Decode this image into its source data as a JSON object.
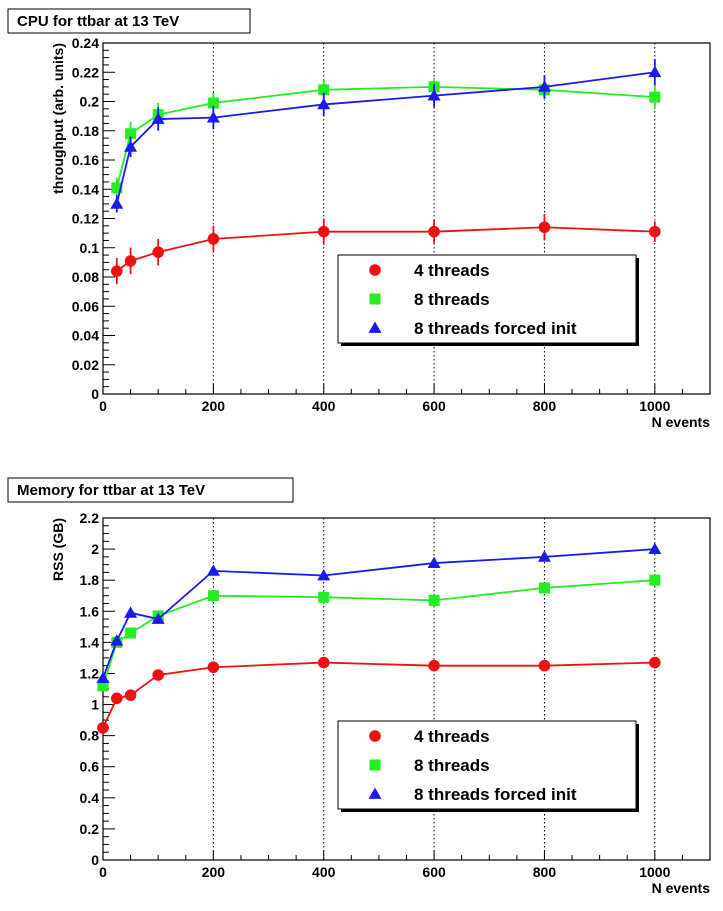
{
  "chart_data": [
    {
      "type": "line",
      "title": "CPU for ttbar at 13 TeV",
      "xlabel": "N events",
      "ylabel": "throughput (arb. units)",
      "xlim": [
        0,
        1100
      ],
      "ylim": [
        0,
        0.24
      ],
      "x_ticks": [
        0,
        200,
        400,
        600,
        800,
        1000
      ],
      "y_ticks": [
        0,
        0.02,
        0.04,
        0.06,
        0.08,
        0.1,
        0.12,
        0.14,
        0.16,
        0.18,
        0.2,
        0.22,
        0.24
      ],
      "x_tick_labels": [
        "0",
        "200",
        "400",
        "600",
        "800",
        "1000"
      ],
      "y_tick_labels": [
        "0",
        "0.02",
        "0.04",
        "0.06",
        "0.08",
        "0.1",
        "0.12",
        "0.14",
        "0.16",
        "0.18",
        "0.2",
        "0.22",
        "0.24"
      ],
      "grid": true,
      "legend_position": "middle-right",
      "series": [
        {
          "name": "4 threads",
          "color": "#ee1111",
          "marker": "circle",
          "x": [
            25,
            50,
            100,
            200,
            400,
            600,
            800,
            1000
          ],
          "y": [
            0.084,
            0.091,
            0.097,
            0.106,
            0.111,
            0.111,
            0.114,
            0.111
          ],
          "err": [
            0.009,
            0.009,
            0.009,
            0.009,
            0.009,
            0.008,
            0.009,
            0.007
          ]
        },
        {
          "name": "8 threads",
          "color": "#22ee22",
          "marker": "square",
          "x": [
            25,
            50,
            100,
            200,
            400,
            600,
            800,
            1000
          ],
          "y": [
            0.141,
            0.178,
            0.191,
            0.199,
            0.208,
            0.21,
            0.208,
            0.203
          ],
          "err": [
            0.007,
            0.008,
            0.008,
            0.007,
            0.007,
            0.006,
            0.007,
            0.008
          ]
        },
        {
          "name": "8 threads forced init",
          "color": "#1a1aee",
          "marker": "triangle",
          "x": [
            25,
            50,
            100,
            200,
            400,
            600,
            800,
            1000
          ],
          "y": [
            0.13,
            0.169,
            0.188,
            0.189,
            0.198,
            0.204,
            0.21,
            0.22
          ],
          "err": [
            0.006,
            0.007,
            0.008,
            0.008,
            0.008,
            0.008,
            0.008,
            0.009
          ]
        }
      ]
    },
    {
      "type": "line",
      "title": "Memory for ttbar at 13 TeV",
      "xlabel": "N events",
      "ylabel": "RSS (GB)",
      "xlim": [
        0,
        1100
      ],
      "ylim": [
        0,
        2.2
      ],
      "x_ticks": [
        0,
        200,
        400,
        600,
        800,
        1000
      ],
      "y_ticks": [
        0,
        0.2,
        0.4,
        0.6,
        0.8,
        1,
        1.2,
        1.4,
        1.6,
        1.8,
        2,
        2.2
      ],
      "x_tick_labels": [
        "0",
        "200",
        "400",
        "600",
        "800",
        "1000"
      ],
      "y_tick_labels": [
        "0",
        "0.2",
        "0.4",
        "0.6",
        "0.8",
        "1",
        "1.2",
        "1.4",
        "1.6",
        "1.8",
        "2",
        "2.2"
      ],
      "grid": true,
      "legend_position": "bottom-right",
      "series": [
        {
          "name": "4 threads",
          "color": "#ee1111",
          "marker": "circle",
          "x": [
            0,
            25,
            50,
            100,
            200,
            400,
            600,
            800,
            1000
          ],
          "y": [
            0.85,
            1.04,
            1.06,
            1.19,
            1.24,
            1.27,
            1.25,
            1.25,
            1.27
          ]
        },
        {
          "name": "8 threads",
          "color": "#22ee22",
          "marker": "square",
          "x": [
            0,
            25,
            50,
            100,
            200,
            400,
            600,
            800,
            1000
          ],
          "y": [
            1.12,
            1.4,
            1.46,
            1.57,
            1.7,
            1.69,
            1.67,
            1.75,
            1.8
          ]
        },
        {
          "name": "8 threads forced init",
          "color": "#1a1aee",
          "marker": "triangle",
          "x": [
            0,
            25,
            50,
            100,
            200,
            400,
            600,
            800,
            1000
          ],
          "y": [
            1.17,
            1.41,
            1.59,
            1.55,
            1.86,
            1.83,
            1.91,
            1.95,
            2.0
          ]
        }
      ]
    }
  ]
}
